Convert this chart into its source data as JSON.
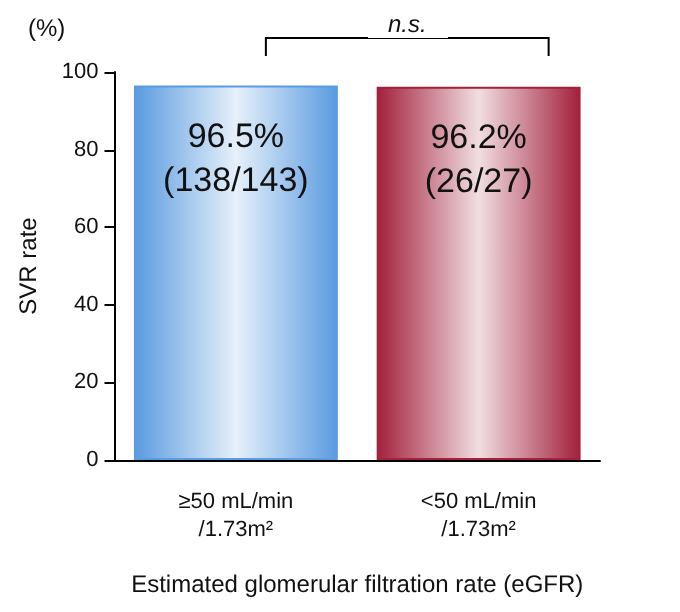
{
  "chart_data": {
    "type": "bar",
    "xlabel": "Estimated glomerular filtration rate (eGFR)",
    "ylabel": "SVR rate",
    "categories": [
      "≥50 mL/min\n/1.73m²",
      "<50 mL/min\n/1.73m²"
    ],
    "values": [
      96.5,
      96.2
    ],
    "colors": [
      "#5b9be0",
      "#a3213c"
    ],
    "value_labels": [
      "96.5%\n(138/143)",
      "96.2%\n(26/27)"
    ],
    "ylim": [
      0,
      100
    ],
    "yticks": [
      0,
      20,
      40,
      60,
      80,
      100
    ],
    "grid": false,
    "annotations": [
      "(%)",
      "n.s."
    ]
  }
}
